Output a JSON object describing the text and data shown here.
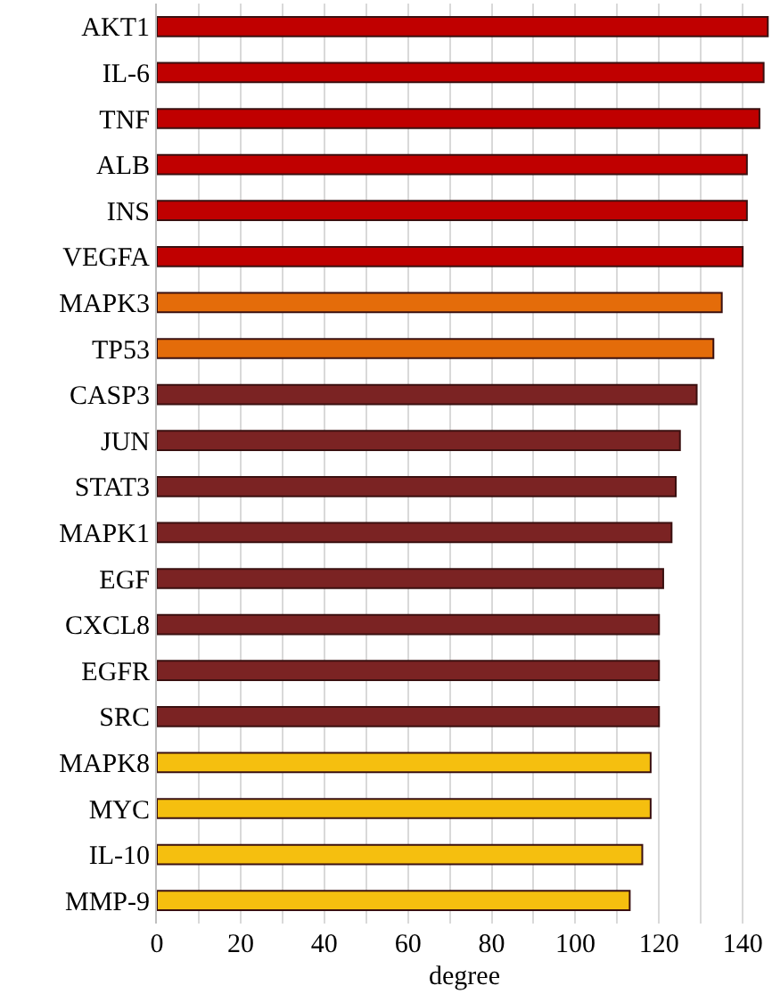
{
  "chart_data": {
    "type": "bar",
    "orientation": "horizontal",
    "xlabel": "degree",
    "categories": [
      "AKT1",
      "IL-6",
      "TNF",
      "ALB",
      "INS",
      "VEGFA",
      "MAPK3",
      "TP53",
      "CASP3",
      "JUN",
      "STAT3",
      "MAPK1",
      "EGF",
      "CXCL8",
      "EGFR",
      "SRC",
      "MAPK8",
      "MYC",
      "IL-10",
      "MMP-9"
    ],
    "values": [
      146,
      145,
      144,
      141,
      141,
      140,
      135,
      133,
      129,
      125,
      124,
      123,
      121,
      120,
      120,
      120,
      118,
      118,
      116,
      113
    ],
    "colors": [
      "#c00000",
      "#c00000",
      "#c00000",
      "#c00000",
      "#c00000",
      "#c00000",
      "#e46c0a",
      "#e46c0a",
      "#7b2323",
      "#7b2323",
      "#7b2323",
      "#7b2323",
      "#7b2323",
      "#7b2323",
      "#7b2323",
      "#7b2323",
      "#f5bf0f",
      "#f5bf0f",
      "#f5bf0f",
      "#f5bf0f"
    ],
    "xlim": [
      0,
      147
    ],
    "xticks": [
      0,
      {
        "value": 10,
        "label": null
      },
      20,
      {
        "value": 30,
        "label": null
      },
      40,
      {
        "value": 50,
        "label": null
      },
      60,
      {
        "value": 70,
        "label": null
      },
      80,
      {
        "value": 90,
        "label": null
      },
      100,
      {
        "value": 110,
        "label": null
      },
      120,
      {
        "value": 130,
        "label": null
      },
      140
    ],
    "grid": "x"
  }
}
